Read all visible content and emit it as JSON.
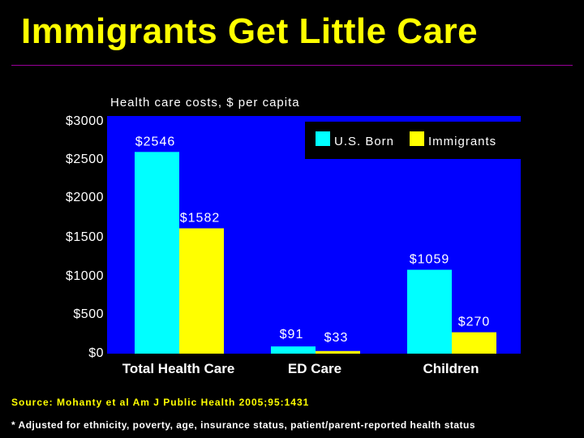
{
  "title": "Immigrants Get Little Care",
  "source": "Source: Mohanty et al Am J Public Health 2005;95:1431",
  "footnote": "* Adjusted for ethnicity, poverty, age, insurance status, patient/parent-reported health status",
  "colors": {
    "background": "#000000",
    "title": "#FFFF00",
    "plot_area": "#0000FF",
    "us_born": "#00FFFF",
    "immigrants": "#FFFF00",
    "rule": "#990099"
  },
  "chart_data": {
    "type": "bar",
    "title": "Health care costs, $ per capita",
    "categories": [
      "Total Health Care",
      "ED Care",
      "Children"
    ],
    "series": [
      {
        "name": "U.S. Born",
        "values": [
          2546,
          91,
          1059
        ],
        "labels": [
          "$2546",
          "$91",
          "$1059"
        ]
      },
      {
        "name": "Immigrants",
        "values": [
          1582,
          33,
          270
        ],
        "labels": [
          "$1582",
          "$33",
          "$270"
        ]
      }
    ],
    "yticks": [
      {
        "value": 0,
        "label": "$0"
      },
      {
        "value": 500,
        "label": "$500"
      },
      {
        "value": 1000,
        "label": "$1000"
      },
      {
        "value": 1500,
        "label": "$1500"
      },
      {
        "value": 2000,
        "label": "$2000"
      },
      {
        "value": 2500,
        "label": "$2500"
      },
      {
        "value": 3000,
        "label": "$3000"
      }
    ],
    "ylim": [
      0,
      3000
    ],
    "grid": false,
    "legend_position": "top-right"
  }
}
